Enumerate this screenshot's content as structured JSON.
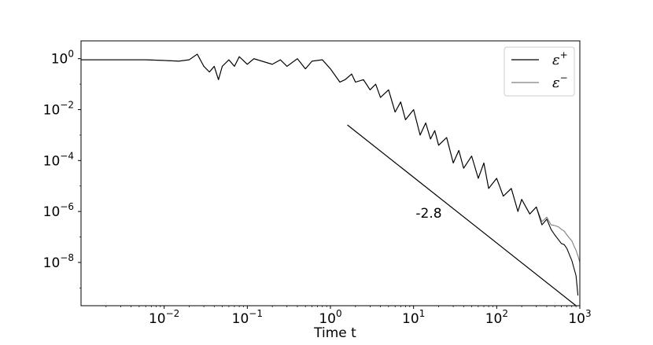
{
  "chart_data": {
    "type": "line",
    "xscale": "log",
    "yscale": "log",
    "xlim": [
      0.001,
      1000
    ],
    "ylim": [
      2e-10,
      5
    ],
    "xlabel": "Time t",
    "ylabel": "",
    "grid": false,
    "legend_position": "top-right",
    "xticks": [
      {
        "value": 0.01,
        "base": "10",
        "exp": "−2"
      },
      {
        "value": 0.1,
        "base": "10",
        "exp": "−1"
      },
      {
        "value": 1,
        "base": "10",
        "exp": "0"
      },
      {
        "value": 10,
        "base": "10",
        "exp": "1"
      },
      {
        "value": 100,
        "base": "10",
        "exp": "2"
      },
      {
        "value": 1000,
        "base": "10",
        "exp": "3"
      }
    ],
    "yticks": [
      {
        "value": 1,
        "base": "10",
        "exp": "0"
      },
      {
        "value": 0.01,
        "base": "10",
        "exp": "−2"
      },
      {
        "value": 0.0001,
        "base": "10",
        "exp": "−4"
      },
      {
        "value": 1e-06,
        "base": "10",
        "exp": "−6"
      },
      {
        "value": 1e-08,
        "base": "10",
        "exp": "−8"
      }
    ],
    "series": [
      {
        "name": "ε⁺",
        "legend_base": "ε",
        "legend_sup": "+",
        "color": "#000000",
        "x": [
          0.001,
          0.003,
          0.006,
          0.01,
          0.015,
          0.02,
          0.025,
          0.03,
          0.035,
          0.04,
          0.045,
          0.05,
          0.06,
          0.07,
          0.08,
          0.1,
          0.12,
          0.15,
          0.2,
          0.25,
          0.3,
          0.4,
          0.5,
          0.6,
          0.8,
          1.0,
          1.3,
          1.5,
          1.8,
          2.0,
          2.5,
          3.0,
          3.5,
          4.0,
          5.0,
          6.0,
          7.0,
          8.0,
          10,
          12,
          14,
          16,
          18,
          20,
          25,
          30,
          35,
          40,
          50,
          60,
          70,
          80,
          100,
          120,
          150,
          180,
          200,
          250,
          300,
          350,
          400,
          450,
          500,
          550,
          600,
          650,
          700,
          750,
          800,
          850,
          900,
          950
        ],
        "y": [
          0.9,
          0.9,
          0.9,
          0.85,
          0.8,
          0.9,
          1.5,
          0.5,
          0.3,
          0.5,
          0.15,
          0.5,
          0.9,
          0.5,
          1.2,
          0.6,
          1.0,
          0.8,
          0.6,
          0.9,
          0.5,
          1.0,
          0.4,
          0.8,
          0.9,
          0.4,
          0.12,
          0.15,
          0.25,
          0.12,
          0.15,
          0.06,
          0.1,
          0.03,
          0.06,
          0.008,
          0.02,
          0.004,
          0.01,
          0.001,
          0.003,
          0.0007,
          0.0015,
          0.0004,
          0.0008,
          8e-05,
          0.00025,
          5e-05,
          0.00015,
          2e-05,
          8e-05,
          8e-06,
          2e-05,
          4e-06,
          8e-06,
          1e-06,
          3e-06,
          8e-07,
          1.5e-06,
          3e-07,
          5e-07,
          2e-07,
          1.2e-07,
          8e-08,
          5.5e-08,
          5e-08,
          3.5e-08,
          2e-08,
          1.2e-08,
          6e-09,
          3e-09,
          5e-10
        ]
      },
      {
        "name": "ε⁻",
        "legend_base": "ε",
        "legend_sup": "−",
        "color": "#7f7f7f",
        "x": [
          0.001,
          0.003,
          0.006,
          0.01,
          0.015,
          0.02,
          0.025,
          0.03,
          0.035,
          0.04,
          0.045,
          0.05,
          0.06,
          0.07,
          0.08,
          0.1,
          0.12,
          0.15,
          0.2,
          0.25,
          0.3,
          0.4,
          0.5,
          0.6,
          0.8,
          1.0,
          1.3,
          1.5,
          1.8,
          2.0,
          2.5,
          3.0,
          3.5,
          4.0,
          5.0,
          6.0,
          7.0,
          8.0,
          10,
          12,
          14,
          16,
          18,
          20,
          25,
          30,
          35,
          40,
          50,
          60,
          70,
          80,
          100,
          120,
          150,
          180,
          200,
          250,
          300,
          350,
          400,
          450,
          500,
          550,
          600,
          650,
          700,
          750,
          800,
          850,
          900,
          950,
          1000
        ],
        "y": [
          0.9,
          0.9,
          0.9,
          0.85,
          0.8,
          0.9,
          1.5,
          0.5,
          0.3,
          0.5,
          0.15,
          0.5,
          0.9,
          0.5,
          1.2,
          0.6,
          1.0,
          0.8,
          0.6,
          0.9,
          0.5,
          1.0,
          0.4,
          0.8,
          0.9,
          0.4,
          0.12,
          0.15,
          0.25,
          0.12,
          0.15,
          0.06,
          0.1,
          0.03,
          0.06,
          0.008,
          0.02,
          0.004,
          0.01,
          0.001,
          0.003,
          0.0007,
          0.0015,
          0.0004,
          0.0008,
          8e-05,
          0.00025,
          5e-05,
          0.00015,
          2e-05,
          8e-05,
          8e-06,
          2e-05,
          4e-06,
          8e-06,
          1e-06,
          3e-06,
          8e-07,
          1.5e-06,
          4e-07,
          6e-07,
          3e-07,
          2.8e-07,
          2.5e-07,
          2e-07,
          1.7e-07,
          1.2e-07,
          9e-08,
          7e-08,
          4.5e-08,
          3e-08,
          1.8e-08,
          1e-08
        ]
      }
    ],
    "reference_line": {
      "label": "-2.8",
      "slope": -2.8,
      "x": [
        1.6,
        900
      ],
      "y": [
        0.0025,
        5.5e-11
      ]
    }
  }
}
